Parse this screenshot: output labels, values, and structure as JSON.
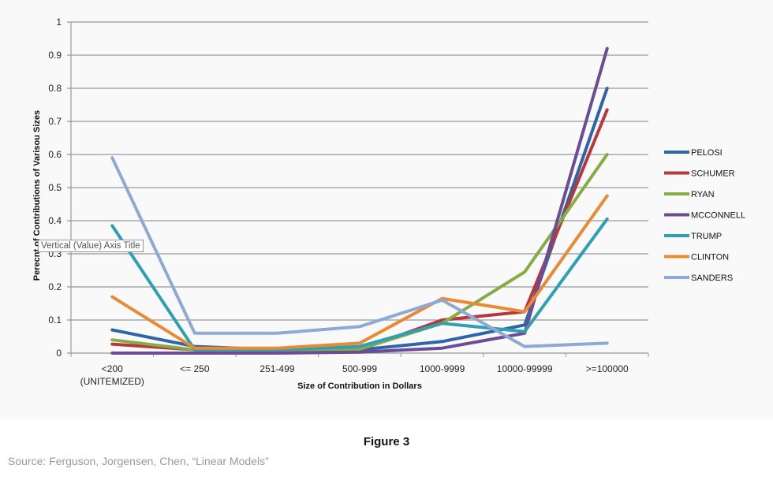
{
  "chart_data": {
    "type": "line",
    "title": "",
    "xlabel": "Size of Contribution in Dollars",
    "ylabel": "Perecnt of Contributions  of Varisou Sizes",
    "ylim": [
      0,
      1
    ],
    "yticks": [
      "0",
      "0.1",
      "0.2",
      "0.3",
      "0.4",
      "0.5",
      "0.6",
      "0.7",
      "0.8",
      "0.9",
      "1"
    ],
    "categories": [
      [
        "<200",
        "(UNITEMIZED)"
      ],
      [
        "<= 250"
      ],
      [
        "251-499"
      ],
      [
        "500-999"
      ],
      [
        "1000-9999"
      ],
      [
        "10000-99999"
      ],
      [
        ">=100000"
      ]
    ],
    "grid": true,
    "legend_position": "right",
    "series": [
      {
        "name": "PELOSI",
        "color": "#2e64a8",
        "values": [
          0.07,
          0.02,
          0.01,
          0.01,
          0.035,
          0.085,
          0.8
        ]
      },
      {
        "name": "SCHUMER",
        "color": "#b8373a",
        "values": [
          0.027,
          0.01,
          0.01,
          0.01,
          0.1,
          0.125,
          0.735
        ]
      },
      {
        "name": "RYAN",
        "color": "#86ac45",
        "values": [
          0.04,
          0.01,
          0.01,
          0.012,
          0.09,
          0.245,
          0.6
        ]
      },
      {
        "name": "MCCONNELL",
        "color": "#6a4d95",
        "values": [
          0.0,
          0.0,
          0.0,
          0.003,
          0.015,
          0.06,
          0.92
        ]
      },
      {
        "name": "TRUMP",
        "color": "#2f9fb5",
        "values": [
          0.385,
          0.01,
          0.01,
          0.02,
          0.09,
          0.065,
          0.405
        ]
      },
      {
        "name": "CLINTON",
        "color": "#e98a34",
        "values": [
          0.17,
          0.015,
          0.015,
          0.03,
          0.165,
          0.125,
          0.475
        ]
      },
      {
        "name": "SANDERS",
        "color": "#8fa9d6",
        "values": [
          0.59,
          0.06,
          0.06,
          0.08,
          0.16,
          0.02,
          0.03
        ]
      }
    ]
  },
  "tooltip": "Vertical (Value) Axis Title",
  "figure_label": "Figure 3",
  "source": "Source: Ferguson, Jorgensen, Chen, “Linear Models”"
}
